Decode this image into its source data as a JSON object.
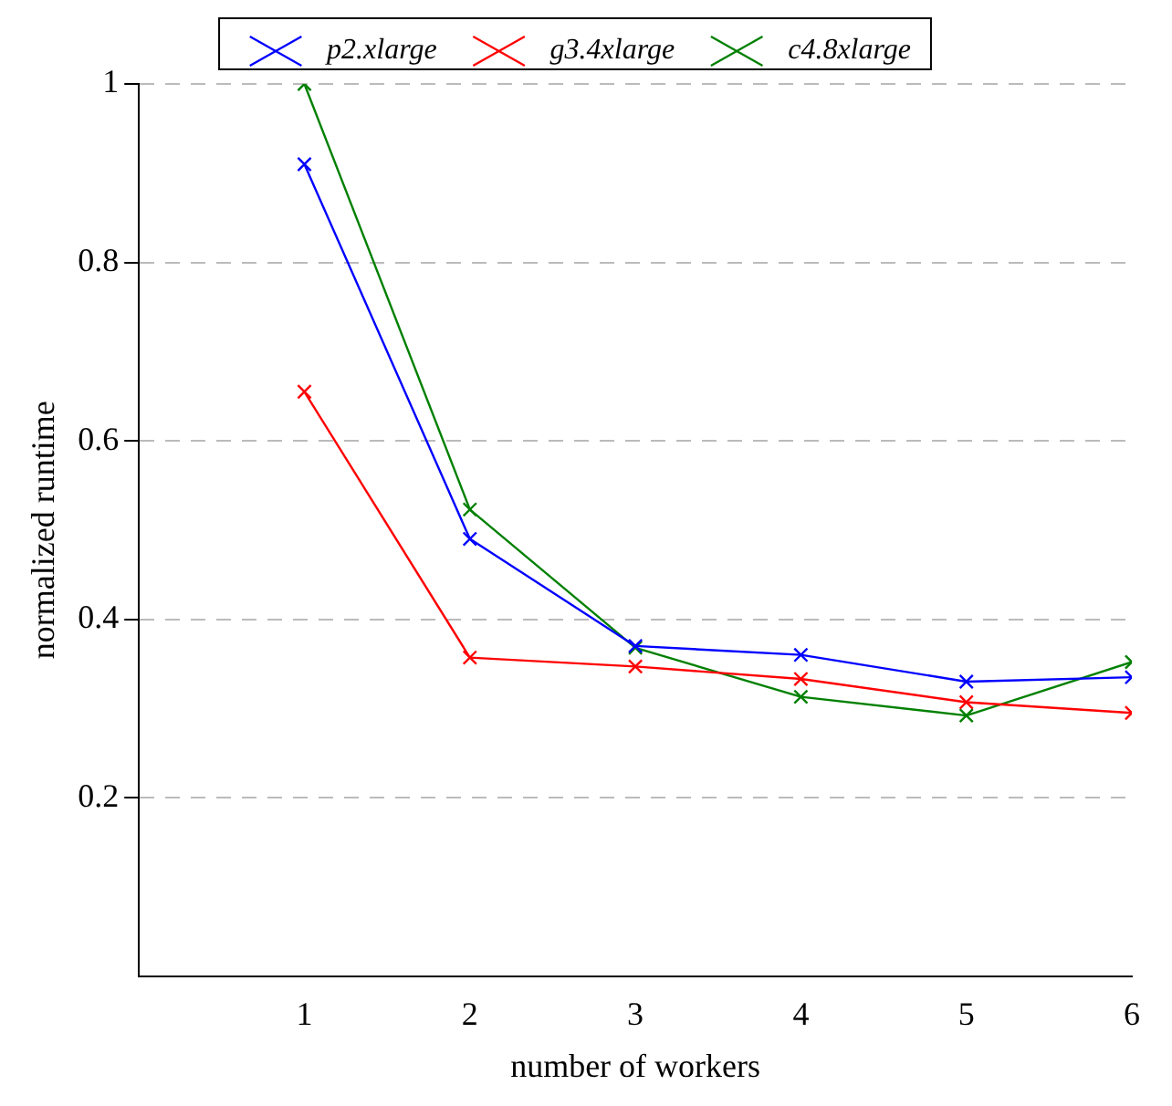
{
  "chart_data": {
    "type": "line",
    "xlabel": "number of workers",
    "ylabel": "normalized runtime",
    "x": [
      1,
      2,
      3,
      4,
      5,
      6
    ],
    "xlim": [
      0,
      6
    ],
    "xticks": [
      1,
      2,
      3,
      4,
      5,
      6
    ],
    "ylim": [
      0,
      1
    ],
    "yticks": [
      0.2,
      0.4,
      0.6,
      0.8,
      1
    ],
    "grid": "y",
    "legend": "top",
    "line_style": "solid",
    "series": [
      {
        "name": "p2.xlarge",
        "color": "#0000ff",
        "marker": "cross",
        "values": [
          0.91,
          0.49,
          0.37,
          0.36,
          0.33,
          0.335
        ]
      },
      {
        "name": "g3.4xlarge",
        "color": "#ff0000",
        "marker": "cross",
        "values": [
          0.655,
          0.357,
          0.347,
          0.333,
          0.307,
          0.295
        ]
      },
      {
        "name": "c4.8xlarge",
        "color": "#008000",
        "marker": "cross",
        "values": [
          1.0,
          0.523,
          0.368,
          0.313,
          0.292,
          0.352
        ]
      }
    ]
  }
}
